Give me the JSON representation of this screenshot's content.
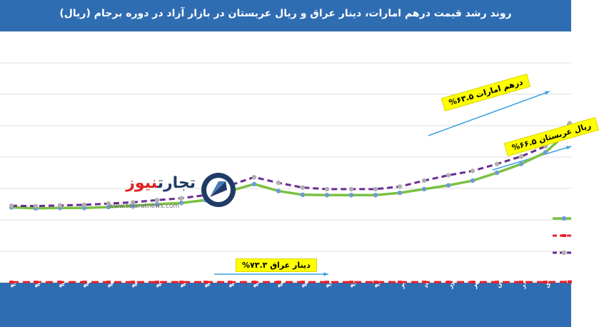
{
  "title": "روند رشد قیمت درهم امارات، دینار عراق و ریال عربستان در بازار آزاد در دوره برجام (ریال)",
  "logo": {
    "name_part1": "تجارت",
    "name_part2": "نیوز",
    "url": "www.tejaratnews.com"
  },
  "callouts": {
    "aed": "درهم امارات ۶۳.۵%",
    "sar": "ریال عربستان ۶۶.۵%",
    "iqd": "دینار عراق ۷۳.۳%"
  },
  "colors": {
    "title_bg": "#2f6db3",
    "axis_bg": "#2f6db3",
    "grid": "#dcdcdc",
    "sar": "#7ac143",
    "sar_marker": "#6e9bd6",
    "aed": "#6a2c91",
    "aed_marker": "#b0b0b0",
    "iqd": "#e8212a",
    "arrow": "#3aa0e0",
    "callout_bg": "#ffff00"
  },
  "chart_data": {
    "type": "line",
    "categories": [
      "اسفند ۹۴",
      "فروردین ۹۵",
      "اردیبهشت ۹۵",
      "خرداد ۹۵",
      "تیر ۹۵",
      "مرداد ۹۵",
      "شهریور ۹۵",
      "مهر ۹۵",
      "آبان ۹۵",
      "آذر ۹۵",
      "دی ۹۵",
      "بهمن ۹۵",
      "اسفند ۹۵",
      "فروردین ۹۶",
      "اردیبهشت ۹۶",
      "خرداد ۹۶",
      "تیر",
      "مرداد",
      "شهریور",
      "مهر",
      "آبان",
      "آذر",
      "دی",
      "بهمن"
    ],
    "series": [
      {
        "key": "sar",
        "values": [
          24,
          23.7,
          23.8,
          23.8,
          24.1,
          24.5,
          25,
          25.4,
          26.3,
          29.2,
          31.4,
          29.2,
          28,
          27.9,
          27.9,
          27.9,
          28.6,
          29.8,
          31,
          32.5,
          35,
          37.8,
          41.5,
          48.5
        ]
      },
      {
        "key": "aed",
        "values": [
          24.5,
          24.4,
          24.6,
          24.8,
          25.2,
          25.6,
          26.3,
          26.9,
          27.9,
          31,
          33.6,
          31.8,
          30.3,
          29.8,
          29.8,
          29.8,
          30.6,
          32.5,
          34.2,
          35.6,
          37.8,
          40.2,
          43.4,
          50.8
        ]
      },
      {
        "key": "iqd",
        "values": [
          0.2,
          0.2,
          0.2,
          0.2,
          0.2,
          0.2,
          0.2,
          0.2,
          0.2,
          0.2,
          0.2,
          0.2,
          0.2,
          0.2,
          0.2,
          0.2,
          0.2,
          0.2,
          0.2,
          0.2,
          0.2,
          0.2,
          0.2,
          0.3
        ]
      }
    ],
    "ylim": [
      0,
      80
    ],
    "grid": true,
    "legend_position": "right"
  }
}
